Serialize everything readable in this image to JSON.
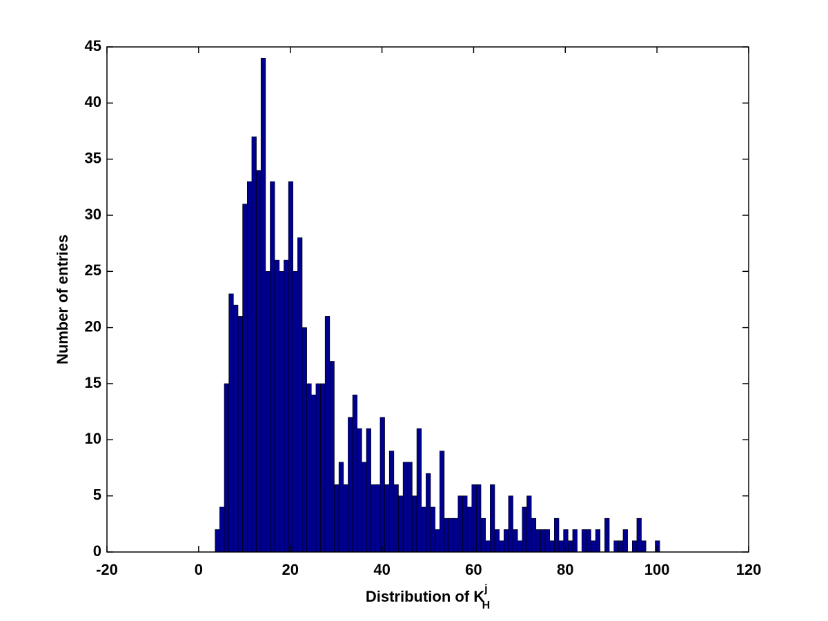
{
  "chart_data": {
    "type": "histogram",
    "xlabel": {
      "text": "Distribution of K",
      "sup": "j",
      "sub": "H"
    },
    "ylabel": "Number of entries",
    "color": "#00008f",
    "bins": [
      3.6,
      4.6,
      5.6,
      6.6,
      7.6,
      8.6,
      9.6,
      10.6,
      11.6,
      12.6,
      13.6,
      14.6,
      15.6,
      16.6,
      17.6,
      18.6,
      19.6,
      20.6,
      21.6,
      22.6,
      23.6,
      24.6,
      25.6,
      26.6,
      27.6,
      28.6,
      29.6,
      30.6,
      31.6,
      32.6,
      33.6,
      34.6,
      35.6,
      36.6,
      37.6,
      38.6,
      39.6,
      40.6,
      41.6,
      42.6,
      43.6,
      44.6,
      45.6,
      46.6,
      47.6,
      48.6,
      49.6,
      50.6,
      51.6,
      52.6,
      53.6,
      54.6,
      55.6,
      56.6,
      57.6,
      58.6,
      59.6,
      60.6,
      61.6,
      62.6,
      63.6,
      64.6,
      65.6,
      66.6,
      67.6,
      68.6,
      69.6,
      70.6,
      71.6,
      72.6,
      73.6,
      74.6,
      75.6,
      76.6,
      77.6,
      78.6,
      79.6,
      80.6,
      81.6,
      82.6,
      83.6,
      84.6,
      85.6,
      86.6,
      87.6,
      88.6,
      89.6,
      90.6,
      91.6,
      92.6,
      93.6,
      94.6,
      95.6,
      96.6,
      97.6,
      98.6,
      99.6,
      100.6
    ],
    "counts": [
      2,
      4,
      15,
      23,
      22,
      21,
      31,
      33,
      37,
      34,
      44,
      25,
      33,
      26,
      25,
      26,
      33,
      25,
      28,
      20,
      15,
      14,
      15,
      15,
      21,
      17,
      6,
      8,
      6,
      12,
      14,
      11,
      8,
      11,
      6,
      6,
      12,
      6,
      9,
      6,
      5,
      8,
      8,
      5,
      11,
      4,
      7,
      4,
      2,
      9,
      3,
      3,
      3,
      5,
      5,
      4,
      6,
      6,
      3,
      1,
      6,
      2,
      1,
      2,
      5,
      2,
      1,
      4,
      5,
      3,
      2,
      2,
      2,
      1,
      3,
      1,
      2,
      1,
      2,
      0,
      2,
      2,
      1,
      2,
      0,
      3,
      0,
      1,
      1,
      2,
      0,
      1,
      3,
      1,
      0,
      0,
      1
    ],
    "xlim": [
      -20,
      120
    ],
    "xticks": [
      -20,
      0,
      20,
      40,
      60,
      80,
      100,
      120
    ],
    "ylim": [
      0,
      45
    ],
    "yticks": [
      0,
      5,
      10,
      15,
      20,
      25,
      30,
      35,
      40,
      45
    ]
  }
}
